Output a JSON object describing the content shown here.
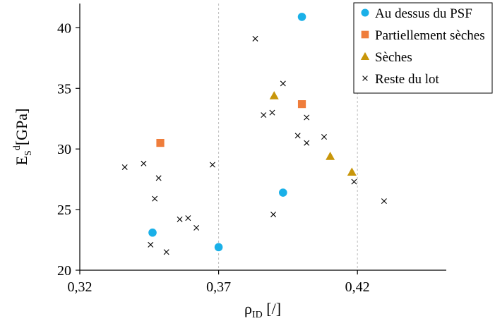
{
  "chart_data": {
    "type": "scatter",
    "xlabel_main": "ρ",
    "xlabel_sub": "ID",
    "xlabel_unit": " [/]",
    "ylabel_main": "E",
    "ylabel_sub": "S",
    "ylabel_sup": "d",
    "ylabel_unit": "[GPa]",
    "xlim": [
      0.32,
      0.452
    ],
    "ylim": [
      20,
      42
    ],
    "xticks": [
      0.32,
      0.37,
      0.42
    ],
    "xtick_labels": [
      "0,32",
      "0,37",
      "0,42"
    ],
    "yticks": [
      20,
      25,
      30,
      35,
      40
    ],
    "ytick_labels": [
      "20",
      "25",
      "30",
      "35",
      "40"
    ],
    "grid": "vertical dashed",
    "legend_position": "top-right",
    "series": [
      {
        "name": "Au dessus du PSF",
        "marker": "circle",
        "color": "#1ab0e8",
        "points": [
          [
            0.4,
            40.9
          ],
          [
            0.3932,
            26.4
          ],
          [
            0.3462,
            23.1
          ],
          [
            0.37,
            21.9
          ]
        ]
      },
      {
        "name": "Partiellement sèches",
        "marker": "square",
        "color": "#ef7d3b",
        "points": [
          [
            0.4,
            33.7
          ],
          [
            0.349,
            30.5
          ]
        ]
      },
      {
        "name": "Sèches",
        "marker": "triangle",
        "color": "#c8960a",
        "points": [
          [
            0.39,
            34.4
          ],
          [
            0.4102,
            29.4
          ],
          [
            0.418,
            28.1
          ]
        ]
      },
      {
        "name": "Reste du lot",
        "marker": "x",
        "color": "#000000",
        "points": [
          [
            0.3832,
            39.1
          ],
          [
            0.3932,
            35.4
          ],
          [
            0.3862,
            32.8
          ],
          [
            0.3893,
            33.0
          ],
          [
            0.4017,
            32.6
          ],
          [
            0.3985,
            31.1
          ],
          [
            0.4017,
            30.5
          ],
          [
            0.408,
            31.0
          ],
          [
            0.4188,
            27.3
          ],
          [
            0.4296,
            25.7
          ],
          [
            0.3362,
            28.5
          ],
          [
            0.343,
            28.8
          ],
          [
            0.3484,
            27.6
          ],
          [
            0.347,
            25.9
          ],
          [
            0.3678,
            28.7
          ],
          [
            0.356,
            24.2
          ],
          [
            0.359,
            24.3
          ],
          [
            0.362,
            23.5
          ],
          [
            0.3455,
            22.1
          ],
          [
            0.3512,
            21.5
          ],
          [
            0.3897,
            24.6
          ]
        ]
      }
    ]
  }
}
